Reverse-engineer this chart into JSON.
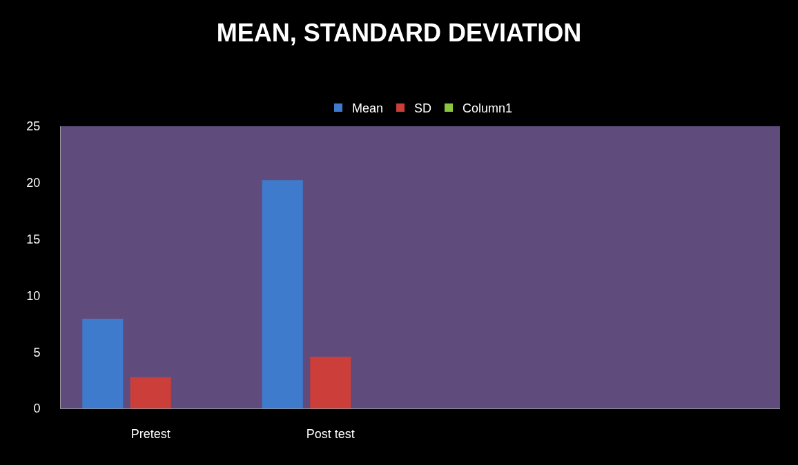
{
  "chart_data": {
    "type": "bar",
    "title": "MEAN, STANDARD DEVIATION",
    "categories": [
      "Pretest",
      "Post test",
      null,
      null
    ],
    "series": [
      {
        "name": "Mean",
        "color": "#3f7bcc",
        "values": [
          7.94,
          20.21,
          null,
          null
        ]
      },
      {
        "name": "SD",
        "color": "#cc3e3a",
        "values": [
          2.76,
          4.59,
          null,
          null
        ]
      },
      {
        "name": "Column1",
        "color": "#8cc63f",
        "values": [
          null,
          null,
          null,
          null
        ]
      }
    ],
    "ylim": [
      0,
      25
    ],
    "yticks": [
      0,
      5,
      10,
      15,
      20,
      25
    ],
    "grid": false,
    "legend": "top"
  }
}
